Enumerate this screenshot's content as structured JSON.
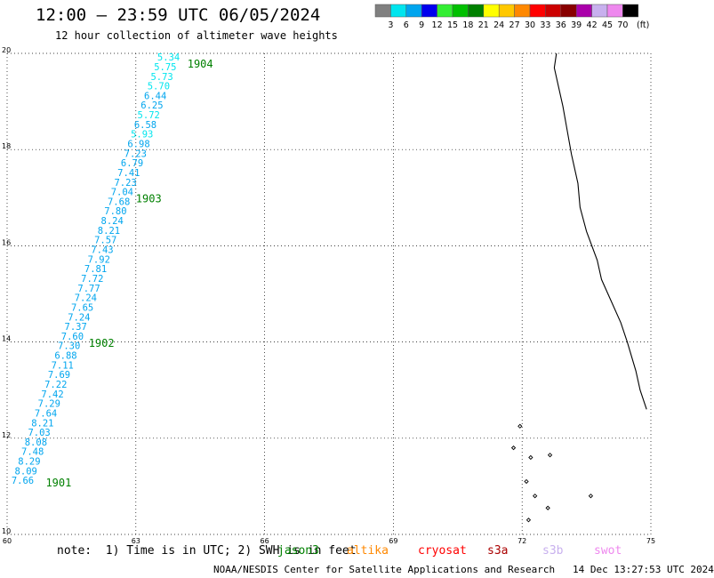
{
  "header": {
    "title": "12:00 – 23:59 UTC 06/05/2024",
    "subtitle": "12 hour collection of altimeter wave heights"
  },
  "legend": {
    "unit": "(ft)",
    "bins": [
      {
        "label": "3",
        "color": "#808080"
      },
      {
        "label": "6",
        "color": "#00e5ee"
      },
      {
        "label": "9",
        "color": "#00a5ee"
      },
      {
        "label": "12",
        "color": "#0000ee"
      },
      {
        "label": "15",
        "color": "#33ee33"
      },
      {
        "label": "18",
        "color": "#00c000"
      },
      {
        "label": "21",
        "color": "#008000"
      },
      {
        "label": "24",
        "color": "#ffff00"
      },
      {
        "label": "27",
        "color": "#ffc800"
      },
      {
        "label": "30",
        "color": "#ff8800"
      },
      {
        "label": "33",
        "color": "#ff0000"
      },
      {
        "label": "36",
        "color": "#cc0000"
      },
      {
        "label": "39",
        "color": "#880000"
      },
      {
        "label": "42",
        "color": "#aa00aa"
      },
      {
        "label": "45",
        "color": "#c8b0ee"
      },
      {
        "label": "70",
        "color": "#ee88ee"
      },
      {
        "label": "",
        "color": "#000000"
      }
    ]
  },
  "map": {
    "lon_ticks": [
      "60",
      "63",
      "66",
      "69",
      "72",
      "75"
    ],
    "lat_ticks": [
      "10",
      "12",
      "14",
      "16",
      "18",
      "20"
    ],
    "lon_range": [
      60,
      75
    ],
    "lat_range": [
      10,
      20
    ],
    "grid": true,
    "track_color": "#00a5ee",
    "track_color_top": "#00e5ee",
    "time_label_color": "#008000",
    "time_labels": [
      {
        "text": "1901",
        "lon": 60.9,
        "lat": 11.0
      },
      {
        "text": "1902",
        "lon": 61.9,
        "lat": 13.9
      },
      {
        "text": "1903",
        "lon": 63.0,
        "lat": 16.9
      },
      {
        "text": "1904",
        "lon": 64.2,
        "lat": 19.7
      }
    ],
    "swh_labels": [
      "7.66",
      "8.09",
      "8.29",
      "7.48",
      "8.08",
      "7.03",
      "8.21",
      "7.64",
      "7.29",
      "7.42",
      "7.22",
      "7.69",
      "7.11",
      "6.88",
      "7.30",
      "7.60",
      "7.37",
      "7.24",
      "7.65",
      "7.24",
      "7.77",
      "7.72",
      "7.81",
      "7.92",
      "7.43",
      "7.57",
      "8.21",
      "8.24",
      "7.80",
      "7.68",
      "7.04",
      "7.23",
      "7.41",
      "6.79",
      "7.23",
      "6.98",
      "5.93",
      "6.58",
      "5.72",
      "6.25",
      "6.44",
      "5.70",
      "5.73",
      "5.75",
      "5.34"
    ],
    "swh_start": {
      "lon": 60.1,
      "lat": 11.05
    },
    "swh_end": {
      "lon": 63.5,
      "lat": 19.85
    }
  },
  "footer": {
    "note": "note:  1) Time is in UTC; 2) SWH is in feet",
    "satellites": [
      {
        "name": "jason3",
        "color": "#008000"
      },
      {
        "name": "altika",
        "color": "#ff8800"
      },
      {
        "name": "cryosat",
        "color": "#ff0000"
      },
      {
        "name": "s3a",
        "color": "#aa0000"
      },
      {
        "name": "s3b",
        "color": "#c8b0ee"
      },
      {
        "name": "swot",
        "color": "#ee88ee"
      }
    ],
    "credit": "NOAA/NESDIS Center for Satellite Applications and Research",
    "timestamp": "14 Dec 13:27:53 UTC 2024"
  }
}
